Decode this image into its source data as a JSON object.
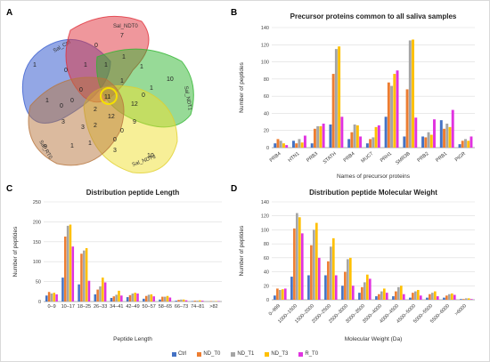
{
  "figure": {
    "panel_letters": {
      "a": "A",
      "b": "B",
      "c": "C",
      "d": "D"
    },
    "legend": [
      {
        "name": "Ctrl",
        "color": "#4472c4"
      },
      {
        "name": "ND_T0",
        "color": "#ed7d31"
      },
      {
        "name": "ND_T1",
        "color": "#a5a5a5"
      },
      {
        "name": "ND_T3",
        "color": "#ffc000"
      },
      {
        "name": "R_T0",
        "color": "#e033e0"
      }
    ]
  },
  "venn": {
    "sets": [
      {
        "label": "Sal_Ctrl",
        "color": "#3b5fcf"
      },
      {
        "label": "Sal_NDT0",
        "color": "#e0303a"
      },
      {
        "label": "Sal_NDT1",
        "color": "#2fb52f"
      },
      {
        "label": "Sal_NDT3",
        "color": "#f0e030"
      },
      {
        "label": "Sal_RT0",
        "color": "#b8753d"
      }
    ],
    "counts": [
      "1",
      "7",
      "10",
      "10",
      "9",
      "0",
      "0",
      "1",
      "1",
      "1",
      "1",
      "1",
      "1",
      "0",
      "0",
      "1",
      "11",
      "0",
      "0",
      "2",
      "12",
      "12",
      "9",
      "0",
      "3",
      "3",
      "2",
      "1",
      "1",
      "0",
      "3"
    ]
  },
  "chart_data": [
    {
      "type": "bar",
      "title": "Precursor proteins common to all saliva samples",
      "xlabel": "Names of precursor proteins",
      "ylabel": "Number of peptides",
      "ylim": [
        0,
        140
      ],
      "yticks": [
        0,
        20,
        40,
        60,
        80,
        100,
        120,
        140
      ],
      "grid": true,
      "categories": [
        "PRB4",
        "HTN1",
        "PRB3",
        "STATH",
        "PRB4",
        "MUC7",
        "PRH1",
        "SMR3B",
        "PRB2",
        "PRB1",
        "PIGR"
      ],
      "series": [
        {
          "name": "Ctrl",
          "values": [
            5,
            8,
            5,
            27,
            10,
            5,
            36,
            13,
            13,
            32,
            4
          ]
        },
        {
          "name": "ND_T0",
          "values": [
            10,
            5,
            22,
            86,
            18,
            10,
            76,
            68,
            12,
            22,
            8
          ]
        },
        {
          "name": "ND_T1",
          "values": [
            8,
            10,
            25,
            115,
            27,
            12,
            72,
            125,
            18,
            28,
            10
          ]
        },
        {
          "name": "ND_T3",
          "values": [
            5,
            6,
            25,
            118,
            26,
            24,
            86,
            126,
            15,
            24,
            8
          ]
        },
        {
          "name": "R_T0",
          "values": [
            3,
            14,
            28,
            36,
            13,
            26,
            90,
            35,
            33,
            44,
            13
          ]
        }
      ]
    },
    {
      "type": "bar",
      "title": "Distribution peptide Length",
      "xlabel": "Peptide Length",
      "ylabel": "Number of peptides",
      "ylim": [
        0,
        250
      ],
      "yticks": [
        0,
        50,
        100,
        150,
        200,
        250
      ],
      "grid": true,
      "categories": [
        "0–9",
        "10–17",
        "18–25",
        "26–33",
        "34–41",
        "42–49",
        "50–57",
        "58–65",
        "66–73",
        "74–81",
        ">82"
      ],
      "series": [
        {
          "name": "Ctrl",
          "values": [
            15,
            60,
            43,
            18,
            9,
            11,
            7,
            5,
            2,
            1,
            0
          ]
        },
        {
          "name": "ND_T0",
          "values": [
            24,
            163,
            120,
            30,
            13,
            16,
            14,
            12,
            4,
            2,
            1
          ]
        },
        {
          "name": "ND_T1",
          "values": [
            20,
            190,
            128,
            38,
            17,
            20,
            17,
            12,
            5,
            2,
            1
          ]
        },
        {
          "name": "ND_T3",
          "values": [
            22,
            193,
            134,
            60,
            27,
            22,
            18,
            14,
            5,
            3,
            1
          ]
        },
        {
          "name": "R_T0",
          "values": [
            18,
            138,
            52,
            48,
            15,
            20,
            13,
            10,
            3,
            2,
            1
          ]
        }
      ]
    },
    {
      "type": "bar",
      "title": "Distribution peptide Molecular Weight",
      "xlabel": "Molecular Weight (Da)",
      "ylabel": "Number of peptides",
      "ylim": [
        0,
        140
      ],
      "yticks": [
        0,
        20,
        40,
        60,
        80,
        100,
        120,
        140
      ],
      "grid": true,
      "categories": [
        "0–999",
        "1000–1500",
        "1500–2000",
        "2000–2500",
        "2500–3000",
        "3000–3500",
        "3500–4000",
        "4000–4500",
        "4500–5000",
        "5000–5500",
        "5500–6000",
        ">6000"
      ],
      "series": [
        {
          "name": "Ctrl",
          "values": [
            6,
            33,
            35,
            35,
            20,
            10,
            5,
            5,
            3,
            3,
            3,
            1
          ]
        },
        {
          "name": "ND_T0",
          "values": [
            16,
            102,
            78,
            55,
            40,
            18,
            8,
            12,
            10,
            8,
            6,
            1
          ]
        },
        {
          "name": "ND_T1",
          "values": [
            14,
            124,
            100,
            76,
            58,
            25,
            12,
            18,
            12,
            10,
            8,
            2
          ]
        },
        {
          "name": "ND_T3",
          "values": [
            15,
            118,
            110,
            88,
            60,
            36,
            16,
            20,
            14,
            12,
            9,
            2
          ]
        },
        {
          "name": "R_T0",
          "values": [
            16,
            95,
            60,
            35,
            20,
            30,
            10,
            8,
            6,
            5,
            7,
            1
          ]
        }
      ]
    }
  ]
}
